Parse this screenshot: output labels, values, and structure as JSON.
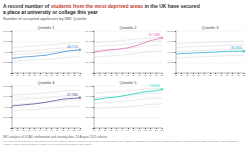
{
  "title": [
    [
      {
        "text": "A record number of ",
        "color": "#333333"
      },
      {
        "text": "students from the most deprived areas",
        "color": "#c0392b"
      },
      {
        "text": " in the UK have secured",
        "color": "#333333"
      }
    ],
    [
      {
        "text": "a place at university or college this year",
        "color": "#222222"
      }
    ]
  ],
  "subtitle": "Number of accepted applicants by IMD Quintile",
  "source": "IMO analysis of UCAS confirmation and clearing data, 20 August 2021 release",
  "note": "The 'IMD quintiles' shown in this chart refer to the national indices of multiple deprivation from across the UK: IMD2019 (England), NIMDM2017 (Northern Ireland), SIMD2012/2016/2020 (Scotland), and WIMD2019 (Wales). These indices measure relative levels of deprivation within each region.",
  "chart_data": [
    {
      "type": "line",
      "title": "Quintile 1",
      "categories": [
        "09",
        "10",
        "11",
        "12",
        "13",
        "14",
        "15",
        "16",
        "17",
        "18",
        "19",
        "20",
        "21"
      ],
      "ylim": [
        0,
        80000
      ],
      "yticks": [
        0,
        {
          "value": 20000,
          "label": "20,000"
        },
        {
          "value": 40000,
          "label": "40,000"
        },
        {
          "value": 60000,
          "label": "60,000"
        },
        {
          "value": 80000,
          "label": "80,000"
        }
      ],
      "grid": true,
      "series": [
        {
          "color": "#c8c8c8",
          "values": [
            48000,
            49000,
            50000,
            50500,
            51000,
            52000,
            53000,
            54000,
            55000,
            56000,
            57000,
            57500,
            58000
          ]
        },
        {
          "color": "#c8c8c8",
          "values": [
            40000,
            41000,
            42000,
            42500,
            43000,
            44000,
            45000,
            46000,
            47000,
            47500,
            47800,
            48000,
            48200
          ]
        },
        {
          "color": "#c8c8c8",
          "values": [
            34000,
            35000,
            36000,
            36500,
            37000,
            38000,
            39000,
            40000,
            41000,
            42000,
            43000,
            43500,
            44000
          ]
        },
        {
          "color": "#c8c8c8",
          "values": [
            22000,
            23000,
            24000,
            24500,
            25000,
            25500,
            26000,
            27000,
            28000,
            29000,
            30000,
            30500,
            31000
          ]
        },
        {
          "color": "#5b9bd5",
          "values": [
            28000,
            29000,
            30500,
            31000,
            32000,
            33000,
            34000,
            36000,
            38000,
            40000,
            42000,
            43000,
            44170
          ]
        },
        {
          "type": "scatter",
          "color": "#5b9bd5",
          "data_labels": true,
          "values": [
            null,
            null,
            null,
            null,
            null,
            null,
            null,
            null,
            null,
            null,
            null,
            null,
            44170
          ],
          "value_labels": [
            null,
            null,
            null,
            null,
            null,
            null,
            null,
            null,
            null,
            null,
            null,
            null,
            "44,170"
          ]
        }
      ]
    },
    {
      "type": "line",
      "title": "Quintile 2",
      "categories": [
        "09",
        "10",
        "11",
        "12",
        "13",
        "14",
        "15",
        "16",
        "17",
        "18",
        "19",
        "20",
        "21"
      ],
      "ylim": [
        0,
        80000
      ],
      "yticks": [
        0,
        {
          "value": 20000,
          "label": "20,000"
        },
        {
          "value": 40000,
          "label": "40,000"
        },
        {
          "value": 60000,
          "label": "60,000"
        },
        {
          "value": 80000,
          "label": "80,000"
        }
      ],
      "grid": true,
      "series": [
        {
          "color": "#c8c8c8",
          "values": [
            58000,
            59000,
            60000,
            60500,
            61000,
            62000,
            63000,
            64000,
            65000,
            66000,
            67000,
            67500,
            68000
          ]
        },
        {
          "color": "#c8c8c8",
          "values": [
            50000,
            51000,
            52000,
            52500,
            53000,
            54000,
            55000,
            56500,
            58000,
            59000,
            60000,
            60500,
            61000
          ]
        },
        {
          "color": "#c8c8c8",
          "values": [
            42000,
            43000,
            44000,
            44500,
            45000,
            46000,
            47000,
            48500,
            50000,
            51000,
            52000,
            52500,
            53000
          ]
        },
        {
          "color": "#c8c8c8",
          "values": [
            30000,
            31000,
            32000,
            32500,
            33000,
            34000,
            35000,
            36500,
            38000,
            40000,
            41000,
            41500,
            42000
          ]
        },
        {
          "color": "#e87abb",
          "values": [
            40000,
            41500,
            43000,
            44000,
            45000,
            46500,
            48000,
            51000,
            54000,
            58000,
            62000,
            64000,
            67188
          ]
        },
        {
          "type": "scatter",
          "color": "#e87abb",
          "data_labels": true,
          "values": [
            null,
            null,
            null,
            null,
            null,
            null,
            null,
            null,
            null,
            null,
            null,
            null,
            67188
          ],
          "value_labels": [
            null,
            null,
            null,
            null,
            null,
            null,
            null,
            null,
            null,
            null,
            null,
            null,
            "67,188"
          ]
        }
      ]
    },
    {
      "type": "line",
      "title": "Quintile 3",
      "categories": [
        "09",
        "10",
        "11",
        "12",
        "13",
        "14",
        "15",
        "16",
        "17",
        "18",
        "19",
        "20",
        "21"
      ],
      "ylim": [
        0,
        80000
      ],
      "yticks": [
        0,
        {
          "value": 20000,
          "label": "20,000"
        },
        {
          "value": 40000,
          "label": "40,000"
        },
        {
          "value": 60000,
          "label": "60,000"
        },
        {
          "value": 80000,
          "label": "80,000"
        }
      ],
      "grid": true,
      "series": [
        {
          "color": "#c8c8c8",
          "values": [
            55000,
            56000,
            57000,
            57500,
            58000,
            58500,
            59000,
            59500,
            60000,
            60200,
            60300,
            60400,
            60500
          ]
        },
        {
          "color": "#c8c8c8",
          "values": [
            48000,
            49000,
            50000,
            50200,
            50500,
            51000,
            51500,
            52000,
            52500,
            53000,
            53200,
            53300,
            53500
          ]
        },
        {
          "color": "#c8c8c8",
          "values": [
            40000,
            41000,
            42000,
            42200,
            42500,
            43000,
            43500,
            44000,
            44500,
            45000,
            45200,
            45300,
            45500
          ]
        },
        {
          "color": "#c8c8c8",
          "values": [
            28000,
            29000,
            30000,
            30200,
            30500,
            31000,
            31500,
            32000,
            32500,
            33000,
            33200,
            33300,
            33500
          ]
        },
        {
          "color": "#41b8d5",
          "values": [
            36000,
            37000,
            37500,
            38000,
            38500,
            39000,
            39500,
            40000,
            40800,
            41200,
            41400,
            41500,
            41600
          ]
        },
        {
          "type": "scatter",
          "color": "#41b8d5",
          "data_labels": true,
          "values": [
            null,
            null,
            null,
            null,
            null,
            null,
            null,
            null,
            null,
            null,
            null,
            null,
            41600
          ],
          "value_labels": [
            null,
            null,
            null,
            null,
            null,
            null,
            null,
            null,
            null,
            null,
            null,
            null,
            "41,600"
          ]
        }
      ]
    },
    {
      "type": "line",
      "title": "Quintile 4",
      "categories": [
        "09",
        "10",
        "11",
        "12",
        "13",
        "14",
        "15",
        "16",
        "17",
        "18",
        "19",
        "20",
        "21"
      ],
      "ylim": [
        0,
        80000
      ],
      "yticks": [
        0,
        {
          "value": 20000,
          "label": "20,000"
        },
        {
          "value": 40000,
          "label": "40,000"
        },
        {
          "value": 60000,
          "label": "60,000"
        },
        {
          "value": 80000,
          "label": "80,000"
        }
      ],
      "grid": true,
      "series": [
        {
          "color": "#c8c8c8",
          "values": [
            62000,
            63000,
            64000,
            64500,
            65000,
            66000,
            67000,
            68000,
            69000,
            70000,
            71000,
            71500,
            72000
          ]
        },
        {
          "color": "#c8c8c8",
          "values": [
            53000,
            54000,
            55000,
            55500,
            56000,
            57000,
            58000,
            59000,
            60000,
            61000,
            62000,
            62500,
            63000
          ]
        },
        {
          "color": "#c8c8c8",
          "values": [
            44000,
            45000,
            46000,
            46500,
            47000,
            48000,
            49000,
            50000,
            51000,
            52000,
            53000,
            53500,
            54000
          ]
        },
        {
          "color": "#c8c8c8",
          "values": [
            32000,
            33000,
            34000,
            34500,
            35000,
            36000,
            37000,
            38000,
            39000,
            40000,
            41000,
            41500,
            42000
          ]
        },
        {
          "color": "#7b5ea7",
          "values": [
            42000,
            43000,
            44000,
            45000,
            46000,
            47500,
            49000,
            51000,
            53000,
            55000,
            56000,
            56500,
            57780
          ]
        },
        {
          "type": "scatter",
          "color": "#7b5ea7",
          "data_labels": true,
          "values": [
            null,
            null,
            null,
            null,
            null,
            null,
            null,
            null,
            null,
            null,
            null,
            null,
            57780
          ],
          "value_labels": [
            null,
            null,
            null,
            null,
            null,
            null,
            null,
            null,
            null,
            null,
            null,
            null,
            "57,780"
          ]
        }
      ]
    },
    {
      "type": "line",
      "title": "Quintile 5",
      "categories": [
        "09",
        "10",
        "11",
        "12",
        "13",
        "14",
        "15",
        "16",
        "17",
        "18",
        "19",
        "20",
        "21"
      ],
      "ylim": [
        0,
        80000
      ],
      "yticks": [
        0,
        {
          "value": 20000,
          "label": "20,000"
        },
        {
          "value": 40000,
          "label": "40,000"
        },
        {
          "value": 60000,
          "label": "60,000"
        },
        {
          "value": 80000,
          "label": "80,000"
        }
      ],
      "grid": true,
      "series": [
        {
          "color": "#c8c8c8",
          "values": [
            66000,
            67000,
            68000,
            68500,
            69000,
            70000,
            71000,
            72000,
            73000,
            74000,
            74500,
            74800,
            75000
          ]
        },
        {
          "color": "#c8c8c8",
          "values": [
            57000,
            58000,
            59000,
            59500,
            60000,
            61000,
            62000,
            63000,
            64000,
            65000,
            66000,
            66500,
            67000
          ]
        },
        {
          "color": "#c8c8c8",
          "values": [
            47000,
            48000,
            49000,
            49500,
            50000,
            51000,
            52000,
            53000,
            54000,
            55000,
            56000,
            56500,
            57000
          ]
        },
        {
          "color": "#c8c8c8",
          "values": [
            36000,
            37000,
            38000,
            38500,
            39000,
            40000,
            41000,
            42000,
            43000,
            44000,
            45000,
            45500,
            46000
          ]
        },
        {
          "color": "#2cd5c4",
          "values": [
            54000,
            55000,
            57000,
            58000,
            59000,
            61000,
            63000,
            65000,
            67000,
            69000,
            70000,
            71000,
            73576
          ]
        },
        {
          "type": "scatter",
          "color": "#2cd5c4",
          "data_labels": true,
          "values": [
            null,
            null,
            null,
            null,
            null,
            null,
            null,
            null,
            null,
            null,
            null,
            null,
            73576
          ],
          "value_labels": [
            null,
            null,
            null,
            null,
            null,
            null,
            null,
            null,
            null,
            null,
            null,
            null,
            "73,576"
          ]
        }
      ]
    }
  ]
}
